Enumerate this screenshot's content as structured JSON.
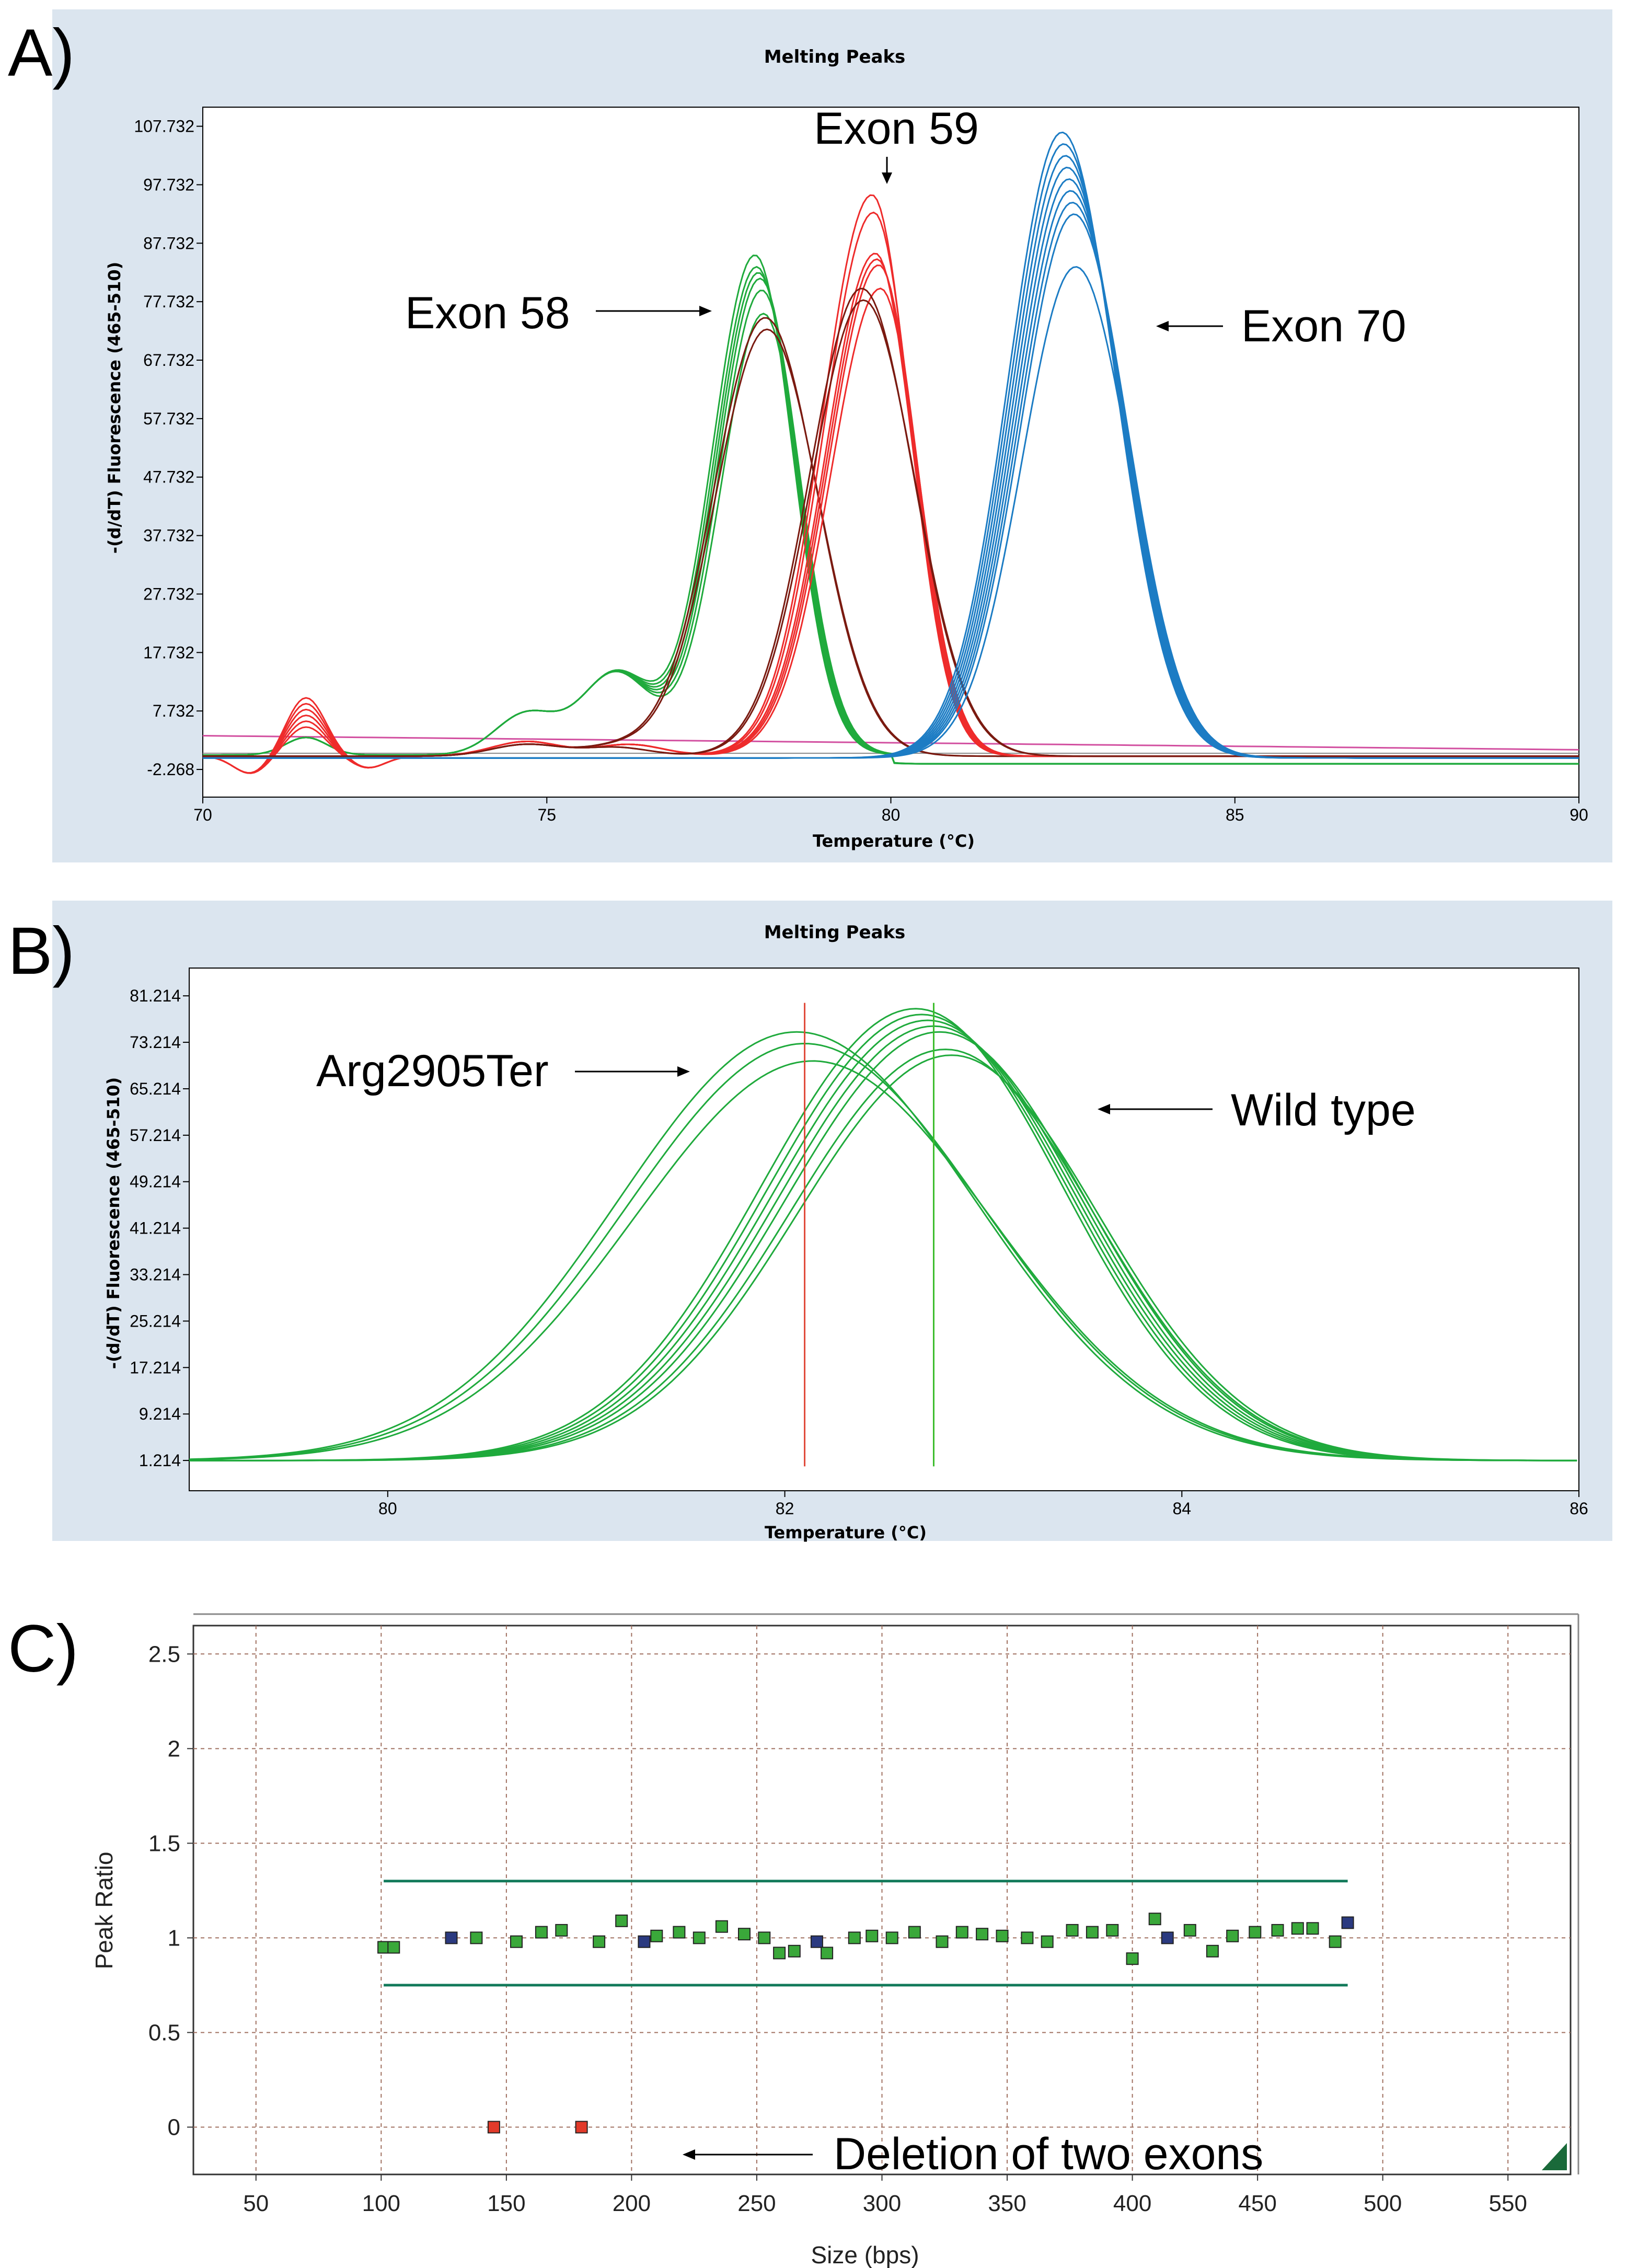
{
  "panel_labels": [
    "A)",
    "B)",
    "C)"
  ],
  "chart_data": [
    {
      "type": "line",
      "panel": "A)",
      "title": "Melting Peaks",
      "xlabel": "Temperature (°C)",
      "ylabel": "-(d/dT) Fluorescence (465-510)",
      "xlim": [
        70,
        90
      ],
      "ylim": [
        -7,
        111
      ],
      "x_ticks": [
        70,
        75,
        80,
        85,
        90
      ],
      "y_ticks": [
        -2.268,
        7.732,
        17.732,
        27.732,
        37.732,
        47.732,
        57.732,
        67.732,
        77.732,
        87.732,
        97.732,
        107.732
      ],
      "y_tick_labels": [
        "-2.268",
        "7.732",
        "17.732",
        "27.732",
        "37.732",
        "47.732",
        "57.732",
        "67.732",
        "77.732",
        "87.732",
        "97.732",
        "107.732"
      ],
      "colors": {
        "green": "#1faa3c",
        "red": "#ee2b2b",
        "dark_red": "#7a1a10",
        "blue": "#1c7cc4",
        "magenta": "#d24fa0"
      },
      "series_groups": [
        {
          "color": "green",
          "peak_x": 78.1,
          "peak_heights": [
            86,
            84,
            83,
            82,
            80,
            76
          ],
          "shoulders": [
            [
              74.7,
              7
            ],
            [
              76,
              14
            ]
          ]
        },
        {
          "color": "dark_red",
          "peak_x": 78.2,
          "peak_heights": [
            75,
            73
          ]
        },
        {
          "color": "red",
          "peak_x": 79.8,
          "peak_heights": [
            96,
            93,
            86,
            85,
            84,
            80
          ],
          "shoulders": [
            [
              71.5,
              7
            ]
          ]
        },
        {
          "color": "dark_red",
          "peak_x": 79.6,
          "peak_heights": [
            80,
            78
          ]
        },
        {
          "color": "blue",
          "peak_x": 82.6,
          "peak_heights": [
            107,
            105,
            103,
            101,
            99,
            97,
            95,
            93,
            84
          ]
        }
      ],
      "annotations": [
        "Exon 58",
        "Exon 59",
        "Exon 70"
      ]
    },
    {
      "type": "line",
      "panel": "B)",
      "title": "Melting Peaks",
      "xlabel": "Temperature (°C)",
      "ylabel": "-(d/dT) Fluorescence (465-510)",
      "xlim": [
        79,
        86
      ],
      "ylim": [
        -4,
        86
      ],
      "x_ticks": [
        80,
        82,
        84,
        86
      ],
      "y_ticks": [
        1.214,
        9.214,
        17.214,
        25.214,
        33.214,
        41.214,
        49.214,
        57.214,
        65.214,
        73.214,
        81.214
      ],
      "y_tick_labels": [
        "1.214",
        "9.214",
        "17.214",
        "25.214",
        "33.214",
        "41.214",
        "49.214",
        "57.214",
        "65.214",
        "73.214",
        "81.214"
      ],
      "colors": {
        "curves": "#1faa3c",
        "mutant_line": "#e04a3a",
        "wildtype_line": "#3cbc2c"
      },
      "mutant_peak_x": 82.1,
      "mutant_peak_heights": [
        75,
        73,
        70
      ],
      "wildtype_peak_x": 82.75,
      "wildtype_peak_heights": [
        79,
        78,
        77,
        76,
        75,
        72,
        71
      ],
      "vertical_markers": [
        82.1,
        82.75
      ],
      "annotations": [
        "Arg2905Ter",
        "Wild type"
      ]
    },
    {
      "type": "scatter",
      "panel": "C)",
      "xlabel": "Size (bps)",
      "ylabel": "Peak Ratio",
      "xlim": [
        25,
        575
      ],
      "ylim": [
        -0.25,
        2.65
      ],
      "x_ticks": [
        50,
        100,
        150,
        200,
        250,
        300,
        350,
        400,
        450,
        500,
        550
      ],
      "y_ticks": [
        0,
        0.5,
        1,
        1.5,
        2,
        2.5
      ],
      "y_tick_labels": [
        "0",
        "0.5",
        "1",
        "1.5",
        "2",
        "2.5"
      ],
      "grid": true,
      "threshold_lines": [
        1.3,
        0.75
      ],
      "threshold_x_range": [
        101,
        486
      ],
      "colors": {
        "normal": "#3aa83a",
        "control": "#2b3a80",
        "deleted": "#e23a2a",
        "threshold": "#127a5a",
        "grid": "#a07060"
      },
      "points": [
        {
          "x": 101,
          "y": 0.95,
          "kind": "normal"
        },
        {
          "x": 105,
          "y": 0.95,
          "kind": "normal"
        },
        {
          "x": 128,
          "y": 1.0,
          "kind": "control"
        },
        {
          "x": 138,
          "y": 1.0,
          "kind": "normal"
        },
        {
          "x": 154,
          "y": 0.98,
          "kind": "normal"
        },
        {
          "x": 164,
          "y": 1.03,
          "kind": "normal"
        },
        {
          "x": 172,
          "y": 1.04,
          "kind": "normal"
        },
        {
          "x": 187,
          "y": 0.98,
          "kind": "normal"
        },
        {
          "x": 196,
          "y": 1.09,
          "kind": "normal"
        },
        {
          "x": 205,
          "y": 0.98,
          "kind": "control"
        },
        {
          "x": 210,
          "y": 1.01,
          "kind": "normal"
        },
        {
          "x": 219,
          "y": 1.03,
          "kind": "normal"
        },
        {
          "x": 227,
          "y": 1.0,
          "kind": "normal"
        },
        {
          "x": 236,
          "y": 1.06,
          "kind": "normal"
        },
        {
          "x": 245,
          "y": 1.02,
          "kind": "normal"
        },
        {
          "x": 253,
          "y": 1.0,
          "kind": "normal"
        },
        {
          "x": 259,
          "y": 0.92,
          "kind": "normal"
        },
        {
          "x": 265,
          "y": 0.93,
          "kind": "normal"
        },
        {
          "x": 274,
          "y": 0.98,
          "kind": "control"
        },
        {
          "x": 278,
          "y": 0.92,
          "kind": "normal"
        },
        {
          "x": 289,
          "y": 1.0,
          "kind": "normal"
        },
        {
          "x": 296,
          "y": 1.01,
          "kind": "normal"
        },
        {
          "x": 304,
          "y": 1.0,
          "kind": "normal"
        },
        {
          "x": 313,
          "y": 1.03,
          "kind": "normal"
        },
        {
          "x": 324,
          "y": 0.98,
          "kind": "normal"
        },
        {
          "x": 332,
          "y": 1.03,
          "kind": "normal"
        },
        {
          "x": 340,
          "y": 1.02,
          "kind": "normal"
        },
        {
          "x": 348,
          "y": 1.01,
          "kind": "normal"
        },
        {
          "x": 358,
          "y": 1.0,
          "kind": "normal"
        },
        {
          "x": 366,
          "y": 0.98,
          "kind": "normal"
        },
        {
          "x": 376,
          "y": 1.04,
          "kind": "normal"
        },
        {
          "x": 384,
          "y": 1.03,
          "kind": "normal"
        },
        {
          "x": 392,
          "y": 1.04,
          "kind": "normal"
        },
        {
          "x": 400,
          "y": 0.89,
          "kind": "normal"
        },
        {
          "x": 409,
          "y": 1.1,
          "kind": "normal"
        },
        {
          "x": 414,
          "y": 1.0,
          "kind": "control"
        },
        {
          "x": 423,
          "y": 1.04,
          "kind": "normal"
        },
        {
          "x": 432,
          "y": 0.93,
          "kind": "normal"
        },
        {
          "x": 440,
          "y": 1.01,
          "kind": "normal"
        },
        {
          "x": 449,
          "y": 1.03,
          "kind": "normal"
        },
        {
          "x": 458,
          "y": 1.04,
          "kind": "normal"
        },
        {
          "x": 466,
          "y": 1.05,
          "kind": "normal"
        },
        {
          "x": 472,
          "y": 1.05,
          "kind": "normal"
        },
        {
          "x": 481,
          "y": 0.98,
          "kind": "normal"
        },
        {
          "x": 486,
          "y": 1.08,
          "kind": "control"
        },
        {
          "x": 145,
          "y": 0.0,
          "kind": "deleted"
        },
        {
          "x": 180,
          "y": 0.0,
          "kind": "deleted"
        }
      ],
      "annotations": [
        "Deletion of two exons"
      ]
    }
  ]
}
